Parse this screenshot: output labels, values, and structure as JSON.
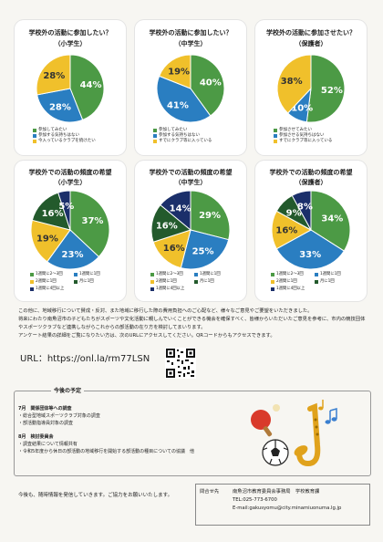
{
  "colors": {
    "green": "#4c9a45",
    "blue": "#2a7ec1",
    "yellow": "#f0c02b",
    "dark": "#235a2c",
    "navy": "#1b2f6a",
    "gray": "#9a9a9a"
  },
  "chart_data": [
    {
      "type": "pie",
      "title": "学校外の活動に参加したい？",
      "subtitle": "（小学生）",
      "slices": [
        {
          "label": "参加してみたい",
          "value": 44,
          "color": "#4c9a45"
        },
        {
          "label": "参加する気持ちはない",
          "value": 28,
          "color": "#2a7ec1"
        },
        {
          "label": "今入っているクラブを続けたい",
          "value": 28,
          "color": "#f0c02b"
        }
      ]
    },
    {
      "type": "pie",
      "title": "学校外の活動に参加したい？",
      "subtitle": "（中学生）",
      "slices": [
        {
          "label": "参加してみたい",
          "value": 40,
          "color": "#4c9a45"
        },
        {
          "label": "参加する気持ちはない",
          "value": 41,
          "color": "#2a7ec1"
        },
        {
          "label": "すでにクラブ等に入っている",
          "value": 19,
          "color": "#f0c02b"
        }
      ]
    },
    {
      "type": "pie",
      "title": "学校外の活動に参加させたい？",
      "subtitle": "（保護者）",
      "slices": [
        {
          "label": "参加させてみたい",
          "value": 52,
          "color": "#4c9a45"
        },
        {
          "label": "参加させる気持ちはない",
          "value": 10,
          "color": "#2a7ec1"
        },
        {
          "label": "すでにクラブ等に入っている",
          "value": 38,
          "color": "#f0c02b"
        }
      ]
    },
    {
      "type": "pie",
      "title": "学校外での活動の頻度の希望",
      "subtitle": "（小学生）",
      "slices": [
        {
          "label": "1週間に2〜3回",
          "value": 37,
          "color": "#4c9a45"
        },
        {
          "label": "1週間に1回",
          "value": 23,
          "color": "#2a7ec1"
        },
        {
          "label": "2週間に1回",
          "value": 19,
          "color": "#f0c02b"
        },
        {
          "label": "月に1回",
          "value": 16,
          "color": "#235a2c"
        },
        {
          "label": "1週間に4回以上",
          "value": 5,
          "color": "#1b2f6a"
        }
      ]
    },
    {
      "type": "pie",
      "title": "学校外での活動の頻度の希望",
      "subtitle": "（中学生）",
      "slices": [
        {
          "label": "1週間に2〜3回",
          "value": 29,
          "color": "#4c9a45"
        },
        {
          "label": "1週間に1回",
          "value": 25,
          "color": "#2a7ec1"
        },
        {
          "label": "2週間に1回",
          "value": 16,
          "color": "#f0c02b"
        },
        {
          "label": "月に1回",
          "value": 16,
          "color": "#235a2c"
        },
        {
          "label": "1週間に4回以上",
          "value": 14,
          "color": "#1b2f6a"
        }
      ]
    },
    {
      "type": "pie",
      "title": "学校外での活動の頻度の希望",
      "subtitle": "（保護者）",
      "slices": [
        {
          "label": "1週間に2〜3回",
          "value": 34,
          "color": "#4c9a45"
        },
        {
          "label": "1週間に1回",
          "value": 33,
          "color": "#2a7ec1"
        },
        {
          "label": "2週間に1回",
          "value": 16,
          "color": "#f0c02b"
        },
        {
          "label": "月に1回",
          "value": 9,
          "color": "#235a2c"
        },
        {
          "label": "1週間に4回以上",
          "value": 8,
          "color": "#1b2f6a"
        }
      ]
    }
  ],
  "paragraph": [
    "この他に、地域移行について賛成・反対、また地域に移行した際の費用負担へのご心配など、様々なご意見やご要望をいただきました。",
    "将来にわたり南魚沼市の子どもたちがスポーツや文化活動に親しんでいくことができる機会を確保すべく、皆様からいただいたご意見を参考に、市内の競技団体やスポーツクラブなど連携しながらこれからの部活動の在り方を検討してまいります。",
    "アンケート結果の詳細をご覧になりたい方は、次のURLにアクセスしてください。QRコードからもアクセスできます。"
  ],
  "url_text": "URL：https://onl.la/rm77LSN",
  "schedule": {
    "title": "今後の予定",
    "items": [
      {
        "month": "7月",
        "head": "関係団体等への調査",
        "lines": [
          "・総合型地域スポーツクラブ対象の調査",
          "・部活動指導員対象の調査"
        ]
      },
      {
        "month": "8月",
        "head": "検討委員会",
        "lines": [
          "・調査結果について情報共有",
          "・令和5年度から休日の部活動の地域移行を開始する部活動の種目についての協議　他"
        ]
      }
    ]
  },
  "footnote": "今後も、随時情報を発信していきます。ご協力をお願いいたします。",
  "contact": {
    "label": "問合せ先",
    "org": "南魚沼市教育委員会事務局　学校教育課",
    "tel": "TEL:025-773-6700",
    "email": "E-mail:gakusyomu@city.minamiuonuma.lg.jp"
  }
}
